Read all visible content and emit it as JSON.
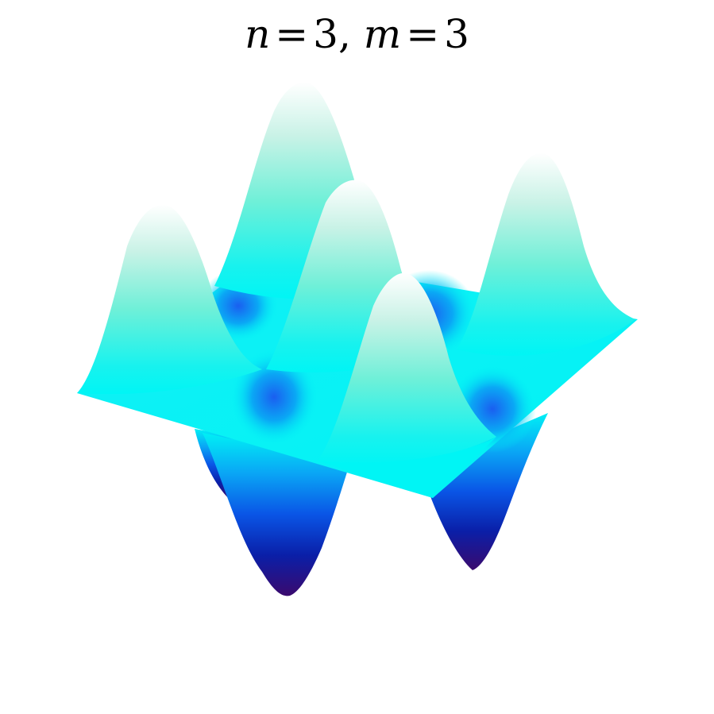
{
  "title": {
    "n_symbol": "n",
    "equals": "=",
    "n_value": "3",
    "separator": ",",
    "m_symbol": "m",
    "m_value": "3"
  },
  "surface": {
    "colormap": [
      "#3a0a6e",
      "#0b1f9e",
      "#0a6df0",
      "#00f5f5",
      "#9af0d8",
      "#ffffff"
    ],
    "plane_color": "#00f5f5"
  }
}
